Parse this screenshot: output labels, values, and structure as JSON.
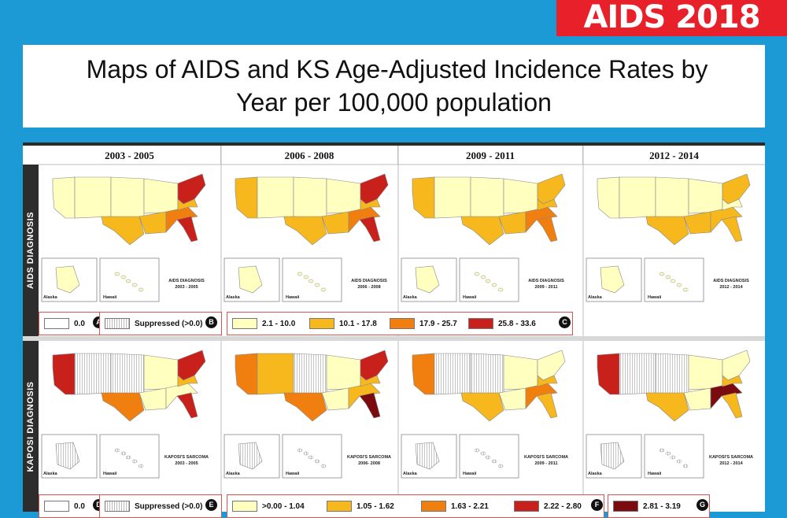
{
  "badge": "AIDS 2018",
  "title": {
    "line1": "Maps of AIDS and KS Age-Adjusted Incidence Rates by",
    "line2": "Year per 100,000 population"
  },
  "periods": [
    "2003 - 2005",
    "2006 - 2008",
    "2009 - 2011",
    "2012 - 2014"
  ],
  "rows": [
    {
      "side_label": "AIDS DIAGNOSIS",
      "map_caption": "AIDS DIAGNOSIS",
      "alaska_label": "Alaska",
      "hawaii_label": "Hawaii",
      "periods_caption": [
        "2003 - 2005",
        "2006 - 2008",
        "2009 - 2011",
        "2012 - 2014"
      ]
    },
    {
      "side_label": "KAPOSI DIAGNOSIS",
      "map_caption": "KAPOSI'S SARCOMA",
      "alaska_label": "Alaska",
      "hawaii_label": "Hawaii",
      "periods_caption": [
        "2003 - 2005",
        "2006- 2008",
        "2009 - 2011",
        "2012 - 2014"
      ]
    }
  ],
  "aids_legend": {
    "zero": {
      "label": "0.0",
      "marker": "A"
    },
    "suppressed": {
      "label": "Suppressed (>0.0)",
      "marker": "B"
    },
    "marker": "C",
    "bins": [
      {
        "label": "2.1 - 10.0",
        "color": "#ffffc0"
      },
      {
        "label": "10.1 - 17.8",
        "color": "#f6b81c"
      },
      {
        "label": "17.9 - 25.7",
        "color": "#f07f10"
      },
      {
        "label": "25.8 - 33.6",
        "color": "#c8201a"
      }
    ]
  },
  "ks_legend": {
    "zero": {
      "label": "0.0",
      "marker": "D"
    },
    "suppressed": {
      "label": "Suppressed (>0.0)",
      "marker": "E"
    },
    "marker_mid": "F",
    "marker_top": "G",
    "bins": [
      {
        "label": ">0.00 - 1.04",
        "color": "#ffffc0"
      },
      {
        "label": "1.05 - 1.62",
        "color": "#f6b81c"
      },
      {
        "label": "1.63 - 2.21",
        "color": "#f07f10"
      },
      {
        "label": "2.22 - 2.80",
        "color": "#c8201a"
      },
      {
        "label": "2.81 - 3.19",
        "color": "#7a0c10"
      }
    ]
  }
}
